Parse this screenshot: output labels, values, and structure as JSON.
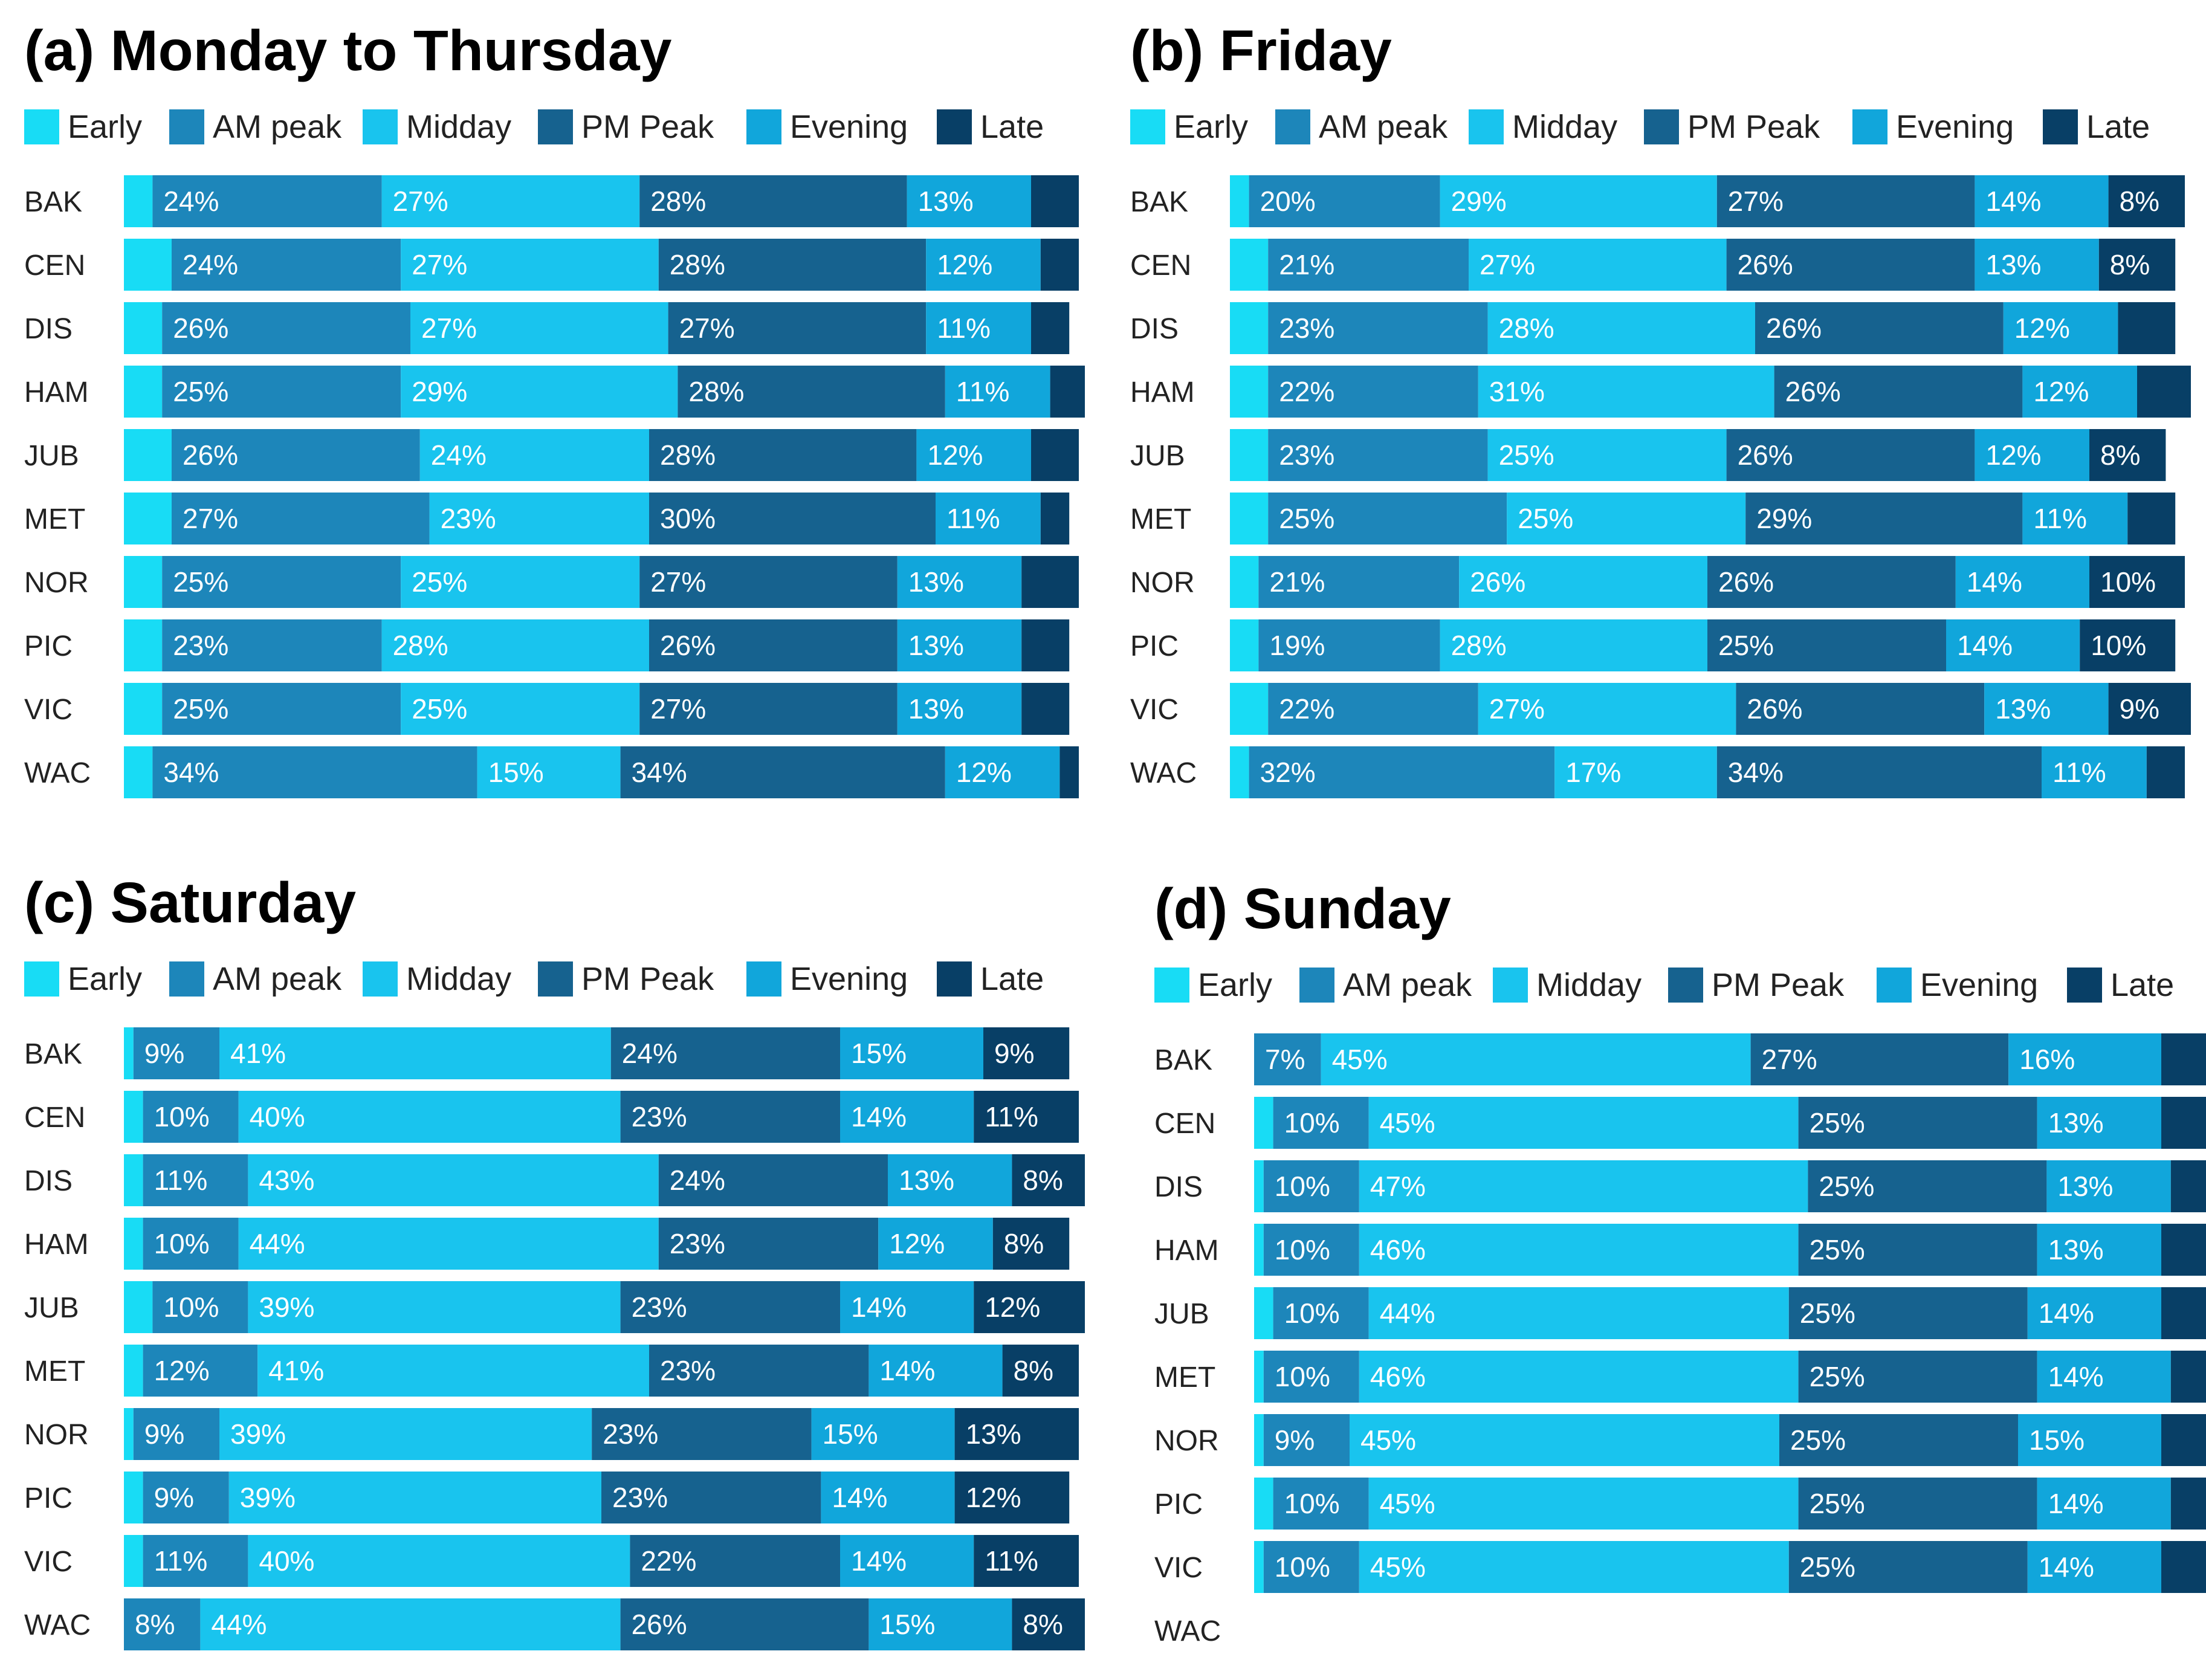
{
  "legend": [
    "Early",
    "AM peak",
    "Midday",
    "PM Peak",
    "Evening",
    "Late"
  ],
  "colors": [
    "#18dcf5",
    "#1d86ba",
    "#19c4ee",
    "#16628f",
    "#11a6db",
    "#083f66"
  ],
  "chart_data": [
    {
      "type": "bar",
      "orientation": "horizontal-stacked-100",
      "title": "(a) Monday to Thursday",
      "categories": [
        "BAK",
        "CEN",
        "DIS",
        "HAM",
        "JUB",
        "MET",
        "NOR",
        "PIC",
        "VIC",
        "WAC"
      ],
      "series": [
        {
          "name": "Early",
          "values": [
            3,
            5,
            4,
            4,
            5,
            5,
            4,
            4,
            4,
            3
          ]
        },
        {
          "name": "AM peak",
          "values": [
            24,
            24,
            26,
            25,
            26,
            27,
            25,
            23,
            25,
            34
          ]
        },
        {
          "name": "Midday",
          "values": [
            27,
            27,
            27,
            29,
            24,
            23,
            25,
            28,
            25,
            15
          ]
        },
        {
          "name": "PM Peak",
          "values": [
            28,
            28,
            27,
            28,
            28,
            30,
            27,
            26,
            27,
            34
          ]
        },
        {
          "name": "Evening",
          "values": [
            13,
            12,
            11,
            11,
            12,
            11,
            13,
            13,
            13,
            12
          ]
        },
        {
          "name": "Late",
          "values": [
            5,
            4,
            4,
            4,
            5,
            3,
            6,
            5,
            5,
            2
          ]
        }
      ],
      "labels": [
        [
          "",
          "24%",
          "27%",
          "28%",
          "13%",
          ""
        ],
        [
          "",
          "24%",
          "27%",
          "28%",
          "12%",
          ""
        ],
        [
          "",
          "26%",
          "27%",
          "27%",
          "11%",
          ""
        ],
        [
          "",
          "25%",
          "29%",
          "28%",
          "11%",
          ""
        ],
        [
          "",
          "26%",
          "24%",
          "28%",
          "12%",
          ""
        ],
        [
          "",
          "27%",
          "23%",
          "30%",
          "11%",
          ""
        ],
        [
          "",
          "25%",
          "25%",
          "27%",
          "13%",
          ""
        ],
        [
          "",
          "23%",
          "28%",
          "26%",
          "13%",
          ""
        ],
        [
          "",
          "25%",
          "25%",
          "27%",
          "13%",
          ""
        ],
        [
          "",
          "34%",
          "15%",
          "34%",
          "12%",
          ""
        ]
      ]
    },
    {
      "type": "bar",
      "orientation": "horizontal-stacked-100",
      "title": "(b) Friday",
      "categories": [
        "BAK",
        "CEN",
        "DIS",
        "HAM",
        "JUB",
        "MET",
        "NOR",
        "PIC",
        "VIC",
        "WAC"
      ],
      "series": [
        {
          "name": "Early",
          "values": [
            2,
            4,
            4,
            4,
            4,
            4,
            3,
            3,
            4,
            2
          ]
        },
        {
          "name": "AM peak",
          "values": [
            20,
            21,
            23,
            22,
            23,
            25,
            21,
            19,
            22,
            32
          ]
        },
        {
          "name": "Midday",
          "values": [
            29,
            27,
            28,
            31,
            25,
            25,
            26,
            28,
            27,
            17
          ]
        },
        {
          "name": "PM Peak",
          "values": [
            27,
            26,
            26,
            26,
            26,
            29,
            26,
            25,
            26,
            34
          ]
        },
        {
          "name": "Evening",
          "values": [
            14,
            13,
            12,
            12,
            12,
            11,
            14,
            14,
            13,
            11
          ]
        },
        {
          "name": "Late",
          "values": [
            8,
            8,
            6,
            6,
            8,
            5,
            10,
            10,
            9,
            4
          ]
        }
      ],
      "labels": [
        [
          "",
          "20%",
          "29%",
          "27%",
          "14%",
          "8%"
        ],
        [
          "",
          "21%",
          "27%",
          "26%",
          "13%",
          "8%"
        ],
        [
          "",
          "23%",
          "28%",
          "26%",
          "12%",
          ""
        ],
        [
          "",
          "22%",
          "31%",
          "26%",
          "12%",
          ""
        ],
        [
          "",
          "23%",
          "25%",
          "26%",
          "12%",
          "8%"
        ],
        [
          "",
          "25%",
          "25%",
          "29%",
          "11%",
          ""
        ],
        [
          "",
          "21%",
          "26%",
          "26%",
          "14%",
          "10%"
        ],
        [
          "",
          "19%",
          "28%",
          "25%",
          "14%",
          "10%"
        ],
        [
          "",
          "22%",
          "27%",
          "26%",
          "13%",
          "9%"
        ],
        [
          "",
          "32%",
          "17%",
          "34%",
          "11%",
          ""
        ]
      ]
    },
    {
      "type": "bar",
      "orientation": "horizontal-stacked-100",
      "title": "(c) Saturday",
      "categories": [
        "BAK",
        "CEN",
        "DIS",
        "HAM",
        "JUB",
        "MET",
        "NOR",
        "PIC",
        "VIC",
        "WAC"
      ],
      "series": [
        {
          "name": "Early",
          "values": [
            1,
            2,
            2,
            2,
            3,
            2,
            1,
            2,
            2,
            0
          ]
        },
        {
          "name": "AM peak",
          "values": [
            9,
            10,
            11,
            10,
            10,
            12,
            9,
            9,
            11,
            8
          ]
        },
        {
          "name": "Midday",
          "values": [
            41,
            40,
            43,
            44,
            39,
            41,
            39,
            39,
            40,
            44
          ]
        },
        {
          "name": "PM Peak",
          "values": [
            24,
            23,
            24,
            23,
            23,
            23,
            23,
            23,
            22,
            26
          ]
        },
        {
          "name": "Evening",
          "values": [
            15,
            14,
            13,
            12,
            14,
            14,
            15,
            14,
            14,
            15
          ]
        },
        {
          "name": "Late",
          "values": [
            9,
            11,
            8,
            8,
            12,
            8,
            13,
            12,
            11,
            8
          ]
        }
      ],
      "labels": [
        [
          "",
          "9%",
          "41%",
          "24%",
          "15%",
          "9%"
        ],
        [
          "",
          "10%",
          "40%",
          "23%",
          "14%",
          "11%"
        ],
        [
          "",
          "11%",
          "43%",
          "24%",
          "13%",
          "8%"
        ],
        [
          "",
          "10%",
          "44%",
          "23%",
          "12%",
          "8%"
        ],
        [
          "",
          "10%",
          "39%",
          "23%",
          "14%",
          "12%"
        ],
        [
          "",
          "12%",
          "41%",
          "23%",
          "14%",
          "8%"
        ],
        [
          "",
          "9%",
          "39%",
          "23%",
          "15%",
          "13%"
        ],
        [
          "",
          "9%",
          "39%",
          "23%",
          "14%",
          "12%"
        ],
        [
          "",
          "11%",
          "40%",
          "22%",
          "14%",
          "11%"
        ],
        [
          "",
          "8%",
          "44%",
          "26%",
          "15%",
          "8%"
        ]
      ]
    },
    {
      "type": "bar",
      "orientation": "horizontal-stacked-100",
      "title": "(d) Sunday",
      "categories": [
        "BAK",
        "CEN",
        "DIS",
        "HAM",
        "JUB",
        "MET",
        "NOR",
        "PIC",
        "VIC",
        "WAC"
      ],
      "series": [
        {
          "name": "Early",
          "values": [
            0,
            2,
            1,
            1,
            2,
            1,
            1,
            2,
            1,
            0
          ]
        },
        {
          "name": "AM peak",
          "values": [
            7,
            10,
            10,
            10,
            10,
            10,
            9,
            10,
            10,
            0
          ]
        },
        {
          "name": "Midday",
          "values": [
            45,
            45,
            47,
            46,
            44,
            46,
            45,
            45,
            45,
            0
          ]
        },
        {
          "name": "PM Peak",
          "values": [
            27,
            25,
            25,
            25,
            25,
            25,
            25,
            25,
            25,
            0
          ]
        },
        {
          "name": "Evening",
          "values": [
            16,
            13,
            13,
            13,
            14,
            14,
            15,
            14,
            14,
            0
          ]
        },
        {
          "name": "Late",
          "values": [
            5,
            5,
            4,
            5,
            5,
            4,
            5,
            4,
            5,
            0
          ]
        }
      ],
      "labels": [
        [
          "",
          "7%",
          "45%",
          "27%",
          "16%",
          ""
        ],
        [
          "",
          "10%",
          "45%",
          "25%",
          "13%",
          ""
        ],
        [
          "",
          "10%",
          "47%",
          "25%",
          "13%",
          ""
        ],
        [
          "",
          "10%",
          "46%",
          "25%",
          "13%",
          ""
        ],
        [
          "",
          "10%",
          "44%",
          "25%",
          "14%",
          ""
        ],
        [
          "",
          "10%",
          "46%",
          "25%",
          "14%",
          ""
        ],
        [
          "",
          "9%",
          "45%",
          "25%",
          "15%",
          ""
        ],
        [
          "",
          "10%",
          "45%",
          "25%",
          "14%",
          ""
        ],
        [
          "",
          "10%",
          "45%",
          "25%",
          "14%",
          ""
        ],
        [
          "",
          "",
          "",
          "",
          "",
          ""
        ]
      ]
    }
  ]
}
